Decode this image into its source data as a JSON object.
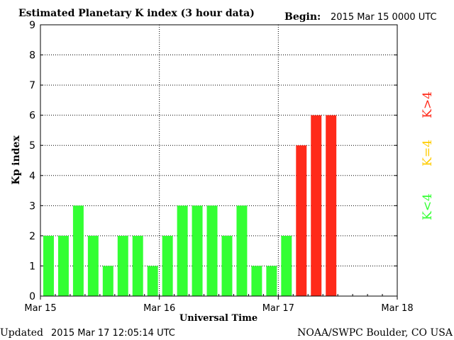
{
  "header": {
    "title": "Estimated Planetary K index (3 hour data)",
    "begin_label": "Begin:",
    "begin_value": "2015 Mar 15 0000 UTC"
  },
  "footer": {
    "updated_label": "Updated",
    "updated_value": "2015 Mar 17 12:05:14 UTC",
    "source": "NOAA/SWPC Boulder, CO USA"
  },
  "legend": {
    "low": "K<4",
    "mid": "K=4",
    "high": "K>4"
  },
  "colors": {
    "low": "#33ff33",
    "mid": "#ffcc00",
    "high": "#ff2a1a",
    "grid": "#000000",
    "text": "#000000"
  },
  "chart_data": {
    "type": "bar",
    "title": "Estimated Planetary K index (3 hour data)",
    "xlabel": "Universal Time",
    "ylabel": "Kp index",
    "ylim": [
      0,
      9
    ],
    "yticks": [
      0,
      1,
      2,
      3,
      4,
      5,
      6,
      7,
      8,
      9
    ],
    "xticks": [
      "Mar 15",
      "Mar 16",
      "Mar 17",
      "Mar 18"
    ],
    "interval_hours": 3,
    "grid": true,
    "legend_placement": "right",
    "values": [
      2,
      2,
      3,
      2,
      1,
      2,
      2,
      1,
      2,
      3,
      3,
      3,
      2,
      3,
      1,
      1,
      2,
      5,
      6,
      6
    ]
  }
}
